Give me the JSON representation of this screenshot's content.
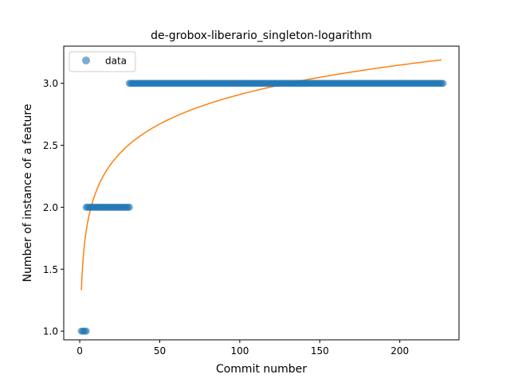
{
  "chart_data": {
    "type": "scatter",
    "title": "de-grobox-liberario_singleton-logarithm",
    "xlabel": "Commit number",
    "ylabel": "Number of instance of a feature",
    "xlim": [
      -10,
      237
    ],
    "ylim": [
      0.93,
      3.3
    ],
    "xticks": [
      0,
      50,
      100,
      150,
      200
    ],
    "xtick_labels": [
      "0",
      "50",
      "100",
      "150",
      "200"
    ],
    "yticks": [
      1.0,
      1.5,
      2.0,
      2.5,
      3.0
    ],
    "ytick_labels": [
      "1.0",
      "1.5",
      "2.0",
      "2.5",
      "3.0"
    ],
    "grid": false,
    "legend_position": "top-left",
    "colors": {
      "data": "#1f77b4",
      "fit": "#ff7f0e"
    },
    "series": [
      {
        "name": "data",
        "kind": "scatter",
        "segments": [
          {
            "x_from": 1,
            "x_to": 4,
            "y": 1
          },
          {
            "x_from": 4,
            "x_to": 31,
            "y": 2
          },
          {
            "x_from": 31,
            "x_to": 227,
            "y": 3
          }
        ]
      },
      {
        "kind": "line",
        "model": "logarithmic",
        "coefficients": {
          "a": 1.33,
          "b": 0.343
        },
        "x_range": [
          1,
          226
        ]
      }
    ]
  }
}
